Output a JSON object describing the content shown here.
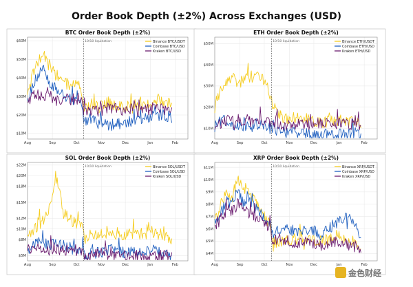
{
  "figure_title": "Order Book Depth (±2%) Across Exchanges (USD)",
  "watermark": "金色财经",
  "colors": {
    "binance": "#f5cc1f",
    "coinbase": "#1f5fbf",
    "kraken": "#6a1b6e",
    "grid": "#e6e6e6",
    "annotation": "#444444"
  },
  "chart_data": [
    {
      "type": "line",
      "title": "BTC Order Book Depth (±2%)",
      "x_start_day": 0,
      "x_end_day": 200,
      "xticks": [
        {
          "label": "Aug",
          "day": 0
        },
        {
          "label": "Sep",
          "day": 31
        },
        {
          "label": "Oct",
          "day": 61
        },
        {
          "label": "Nov",
          "day": 92
        },
        {
          "label": "Dec",
          "day": 122
        },
        {
          "label": "Jan",
          "day": 153
        },
        {
          "label": "Feb",
          "day": 184
        }
      ],
      "ylim": [
        7,
        62
      ],
      "yticks": [
        {
          "label": "$10M",
          "value": 10
        },
        {
          "label": "$20M",
          "value": 20
        },
        {
          "label": "$30M",
          "value": 30
        },
        {
          "label": "$40M",
          "value": 40
        },
        {
          "label": "$50M",
          "value": 50
        },
        {
          "label": "$60M",
          "value": 60
        }
      ],
      "annotation": {
        "label": "10/10 liquidation",
        "day": 70
      },
      "series": [
        {
          "name": "Binance BTC/USDT",
          "key": "binance",
          "days": [
            0,
            10,
            20,
            28,
            35,
            45,
            55,
            62,
            68,
            70,
            72,
            80,
            90,
            100,
            110,
            120,
            130,
            140,
            150,
            160,
            170,
            180
          ],
          "values": [
            30,
            48,
            52,
            46,
            42,
            38,
            35,
            38,
            32,
            26,
            24,
            26,
            24,
            27,
            25,
            25,
            24,
            25,
            26,
            28,
            27,
            25
          ]
        },
        {
          "name": "Coinbase BTC/USD",
          "key": "coinbase",
          "days": [
            0,
            10,
            20,
            28,
            35,
            45,
            55,
            62,
            68,
            70,
            72,
            80,
            90,
            100,
            110,
            120,
            130,
            140,
            150,
            160,
            170,
            180
          ],
          "values": [
            28,
            40,
            44,
            38,
            34,
            30,
            28,
            30,
            26,
            18,
            16,
            18,
            15,
            14,
            15,
            16,
            17,
            18,
            19,
            20,
            20,
            19
          ]
        },
        {
          "name": "Kraken BTC/USD",
          "key": "kraken",
          "days": [
            0,
            10,
            20,
            28,
            35,
            45,
            55,
            62,
            68,
            70,
            72,
            80,
            90,
            100,
            110,
            120,
            130,
            140,
            150,
            160,
            170,
            180
          ],
          "values": [
            26,
            32,
            30,
            30,
            28,
            29,
            28,
            29,
            27,
            23,
            22,
            23,
            22,
            24,
            23,
            22,
            23,
            22,
            23,
            24,
            23,
            22
          ]
        }
      ]
    },
    {
      "type": "line",
      "title": "ETH Order Book Depth (±2%)",
      "x_start_day": 0,
      "x_end_day": 200,
      "xticks": [
        {
          "label": "Aug",
          "day": 0
        },
        {
          "label": "Sep",
          "day": 31
        },
        {
          "label": "Oct",
          "day": 61
        },
        {
          "label": "Nov",
          "day": 92
        },
        {
          "label": "Dec",
          "day": 122
        },
        {
          "label": "Jan",
          "day": 153
        },
        {
          "label": "Feb",
          "day": 184
        }
      ],
      "ylim": [
        5,
        53
      ],
      "yticks": [
        {
          "label": "$10M",
          "value": 10
        },
        {
          "label": "$20M",
          "value": 20
        },
        {
          "label": "$30M",
          "value": 30
        },
        {
          "label": "$40M",
          "value": 40
        },
        {
          "label": "$50M",
          "value": 50
        }
      ],
      "annotation": {
        "label": "10/10 liquidation",
        "day": 70
      },
      "series": [
        {
          "name": "Binance ETH/USDT",
          "key": "binance",
          "days": [
            0,
            8,
            15,
            22,
            30,
            38,
            45,
            52,
            60,
            66,
            70,
            72,
            80,
            90,
            100,
            110,
            120,
            130,
            140,
            150,
            160,
            170,
            180
          ],
          "values": [
            20,
            30,
            33,
            35,
            30,
            36,
            34,
            38,
            32,
            28,
            24,
            20,
            16,
            14,
            15,
            14,
            14,
            13,
            13,
            14,
            13,
            13,
            13
          ]
        },
        {
          "name": "Coinbase ETH/USD",
          "key": "coinbase",
          "days": [
            0,
            8,
            15,
            22,
            30,
            38,
            45,
            52,
            60,
            66,
            70,
            72,
            80,
            90,
            100,
            110,
            120,
            130,
            140,
            150,
            160,
            170,
            180
          ],
          "values": [
            11,
            13,
            14,
            12,
            12,
            11,
            11,
            12,
            11,
            10,
            10,
            9,
            9,
            8,
            8,
            7.5,
            7,
            7,
            7,
            7,
            7,
            7,
            7.5
          ]
        },
        {
          "name": "Kraken ETH/USD",
          "key": "kraken",
          "days": [
            0,
            8,
            15,
            22,
            30,
            38,
            45,
            52,
            60,
            66,
            70,
            72,
            80,
            90,
            100,
            110,
            120,
            130,
            140,
            150,
            160,
            170,
            180
          ],
          "values": [
            12,
            13,
            14,
            13,
            14,
            14,
            13,
            14,
            13,
            13,
            14,
            13,
            12,
            11,
            12,
            12,
            12,
            12,
            12,
            12,
            12,
            12,
            12
          ]
        }
      ]
    },
    {
      "type": "line",
      "title": "SOL Order Book Depth (±2%)",
      "x_start_day": 0,
      "x_end_day": 200,
      "xticks": [
        {
          "label": "Aug",
          "day": 0
        },
        {
          "label": "Sep",
          "day": 31
        },
        {
          "label": "Oct",
          "day": 61
        },
        {
          "label": "Nov",
          "day": 92
        },
        {
          "label": "Dec",
          "day": 122
        },
        {
          "label": "Jan",
          "day": 153
        },
        {
          "label": "Feb",
          "day": 184
        }
      ],
      "ylim": [
        4,
        22.5
      ],
      "yticks": [
        {
          "label": "$5M",
          "value": 5
        },
        {
          "label": "$8M",
          "value": 8
        },
        {
          "label": "$10M",
          "value": 10
        },
        {
          "label": "$12M",
          "value": 12
        },
        {
          "label": "$15M",
          "value": 15
        },
        {
          "label": "$18M",
          "value": 18
        },
        {
          "label": "$20M",
          "value": 20
        },
        {
          "label": "$22M",
          "value": 22
        }
      ],
      "annotation": {
        "label": "10/10 liquidation",
        "day": 70
      },
      "series": [
        {
          "name": "Binance SOL/USDT",
          "key": "binance",
          "days": [
            0,
            8,
            15,
            22,
            28,
            35,
            40,
            45,
            52,
            60,
            68,
            70,
            72,
            80,
            90,
            100,
            110,
            120,
            130,
            140,
            150,
            160,
            170,
            180
          ],
          "values": [
            9,
            10,
            11,
            12,
            14,
            20,
            17,
            13,
            12,
            11,
            10,
            9,
            8,
            9,
            9,
            10,
            9,
            9,
            9,
            9,
            10,
            9,
            9,
            8
          ]
        },
        {
          "name": "Coinbase SOL/USD",
          "key": "coinbase",
          "days": [
            0,
            8,
            15,
            22,
            28,
            35,
            40,
            45,
            52,
            60,
            68,
            70,
            72,
            80,
            90,
            100,
            110,
            120,
            130,
            140,
            150,
            160,
            170,
            180
          ],
          "values": [
            6,
            7,
            7.5,
            6.5,
            7,
            8,
            7,
            7,
            6.5,
            6,
            6,
            5.5,
            5,
            5.5,
            5.5,
            6,
            6,
            5.5,
            5.5,
            6,
            6,
            6,
            5.5,
            5.5
          ]
        },
        {
          "name": "Kraken SOL/USD",
          "key": "kraken",
          "days": [
            0,
            8,
            15,
            22,
            28,
            35,
            40,
            45,
            52,
            60,
            68,
            70,
            72,
            80,
            90,
            100,
            110,
            120,
            130,
            140,
            150,
            160,
            170,
            180
          ],
          "values": [
            6,
            6.5,
            6,
            6,
            6,
            6.5,
            6,
            6,
            6,
            6,
            5.5,
            5,
            5,
            5,
            5.5,
            5,
            5,
            5,
            5,
            5,
            5,
            5,
            5,
            5
          ]
        }
      ]
    },
    {
      "type": "line",
      "title": "XRP Order Book Depth (±2%)",
      "x_start_day": 0,
      "x_end_day": 200,
      "xticks": [
        {
          "label": "Aug",
          "day": 0
        },
        {
          "label": "Sep",
          "day": 31
        },
        {
          "label": "Oct",
          "day": 61
        },
        {
          "label": "Nov",
          "day": 92
        },
        {
          "label": "Dec",
          "day": 122
        },
        {
          "label": "Jan",
          "day": 153
        },
        {
          "label": "Feb",
          "day": 184
        }
      ],
      "ylim": [
        3.4,
        11.4
      ],
      "yticks": [
        {
          "label": "$4M",
          "value": 4
        },
        {
          "label": "$5M",
          "value": 5
        },
        {
          "label": "$6M",
          "value": 6
        },
        {
          "label": "$7M",
          "value": 7
        },
        {
          "label": "$8M",
          "value": 8
        },
        {
          "label": "$9M",
          "value": 9
        },
        {
          "label": "$10M",
          "value": 10
        },
        {
          "label": "$11M",
          "value": 11
        }
      ],
      "annotation": {
        "label": "10/10 liquidation",
        "day": 70
      },
      "series": [
        {
          "name": "Binance XRP/USDT",
          "key": "binance",
          "days": [
            0,
            8,
            15,
            22,
            28,
            35,
            40,
            45,
            52,
            60,
            68,
            70,
            72,
            80,
            90,
            100,
            110,
            120,
            130,
            140,
            150,
            160,
            170,
            180
          ],
          "values": [
            6.5,
            8,
            9,
            8.5,
            10,
            9,
            9.5,
            8.5,
            8,
            7,
            6.5,
            5,
            4.5,
            5,
            5,
            5.2,
            5,
            5,
            5,
            5.2,
            5.5,
            5,
            5,
            4.5
          ]
        },
        {
          "name": "Coinbase XRP/USD",
          "key": "coinbase",
          "days": [
            0,
            8,
            15,
            22,
            28,
            35,
            40,
            45,
            52,
            60,
            68,
            70,
            72,
            80,
            90,
            100,
            110,
            120,
            130,
            140,
            150,
            160,
            170,
            180
          ],
          "values": [
            6.5,
            7.5,
            8,
            8.5,
            9,
            8,
            8.5,
            8,
            7.5,
            7,
            6.5,
            6,
            5.5,
            6,
            6,
            5.8,
            6,
            6,
            5.5,
            6,
            6.5,
            7,
            6.5,
            5.5
          ]
        },
        {
          "name": "Kraken XRP/USD",
          "key": "kraken",
          "days": [
            0,
            8,
            15,
            22,
            28,
            35,
            40,
            45,
            52,
            60,
            68,
            70,
            72,
            80,
            90,
            100,
            110,
            120,
            130,
            140,
            150,
            160,
            170,
            180
          ],
          "values": [
            6,
            7,
            7.5,
            7.5,
            8,
            7.5,
            7.5,
            7,
            7,
            6.5,
            6,
            5.5,
            5,
            5.2,
            5,
            4.8,
            5,
            4.8,
            4.6,
            4.8,
            5,
            4.8,
            4.6,
            4.5
          ]
        }
      ]
    }
  ]
}
